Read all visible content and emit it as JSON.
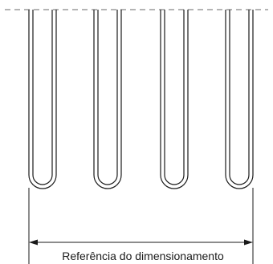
{
  "diagram": {
    "dimension_label": "Referência do dimensionamento",
    "tube_count": 4,
    "colors": {
      "stroke": "#1a1a1a",
      "dashed_line": "#888888",
      "background": "#ffffff"
    }
  }
}
